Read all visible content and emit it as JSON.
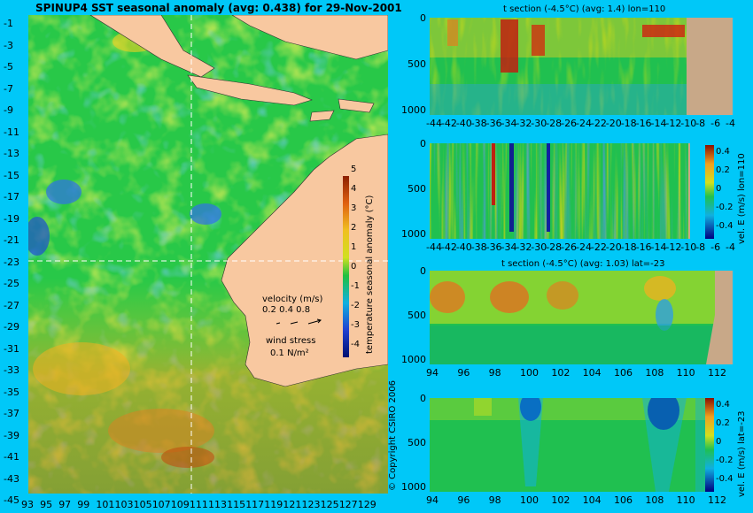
{
  "main_title": "SPINUP4 SST seasonal anomaly (avg: 0.438) for 29-Nov-2001",
  "map": {
    "lat_ticks": [
      "-1",
      "-3",
      "-5",
      "-7",
      "-9",
      "-11",
      "-13",
      "-15",
      "-17",
      "-19",
      "-21",
      "-23",
      "-25",
      "-27",
      "-29",
      "-31",
      "-33",
      "-35",
      "-37",
      "-39",
      "-41",
      "-43",
      "-45"
    ],
    "lon_ticks": [
      "93",
      "95",
      "97",
      "99",
      "101",
      "103",
      "105",
      "107",
      "109",
      "111",
      "113",
      "115",
      "117",
      "119",
      "121",
      "123",
      "125",
      "127",
      "129"
    ],
    "colorbar_ticks": [
      "5",
      "4",
      "3",
      "2",
      "1",
      "0",
      "-1",
      "-2",
      "-3",
      "-4"
    ],
    "colorbar_label": "temperature seasonal anomaly (°C)",
    "velocity_label": "velocity (m/s)",
    "velocity_values": "0.2 0.4 0.8",
    "wind_label": "wind stress",
    "wind_value": "0.1 N/m²",
    "copyright": "© Copyright CSIRO 2006",
    "colors": {
      "land": "#f8c8a0",
      "ocean": "#00c8f8",
      "section_line": "#ffffff",
      "wind_arrows": "#e040e0"
    }
  },
  "panels": [
    {
      "title": "t section (-4.5°C) (avg: 1.4) lon=110",
      "x_ticks": [
        "-44",
        "-42",
        "-40",
        "-38",
        "-36",
        "-34",
        "-32",
        "-30",
        "-28",
        "-26",
        "-24",
        "-22",
        "-20",
        "-18",
        "-16",
        "-14",
        "-12",
        "-10",
        "-8",
        "-6",
        "-4"
      ],
      "y_ticks": [
        "0",
        "500",
        "1000"
      ],
      "side_label": "",
      "cbar_ticks": []
    },
    {
      "title": "",
      "x_ticks": [
        "-44",
        "-42",
        "-40",
        "-38",
        "-36",
        "-34",
        "-32",
        "-30",
        "-28",
        "-26",
        "-24",
        "-22",
        "-20",
        "-18",
        "-16",
        "-14",
        "-12",
        "-10",
        "-8",
        "-6",
        "-4"
      ],
      "y_ticks": [
        "0",
        "500",
        "1000"
      ],
      "side_label": "vel. E (m/s) lon=110",
      "cbar_ticks": [
        "0.4",
        "0.2",
        "0",
        "-0.2",
        "-0.4"
      ]
    },
    {
      "title": "t section (-4.5°C) (avg: 1.03) lat=-23",
      "x_ticks": [
        "94",
        "96",
        "98",
        "100",
        "102",
        "104",
        "106",
        "108",
        "110",
        "112"
      ],
      "y_ticks": [
        "0",
        "500",
        "1000"
      ],
      "side_label": "",
      "cbar_ticks": []
    },
    {
      "title": "",
      "x_ticks": [
        "94",
        "96",
        "98",
        "100",
        "102",
        "104",
        "106",
        "108",
        "110",
        "112"
      ],
      "y_ticks": [
        "0",
        "500",
        "1000"
      ],
      "side_label": "vel. E (m/s) lat=-23",
      "cbar_ticks": [
        "0.4",
        "0.2",
        "0",
        "-0.2",
        "-0.4"
      ]
    }
  ]
}
